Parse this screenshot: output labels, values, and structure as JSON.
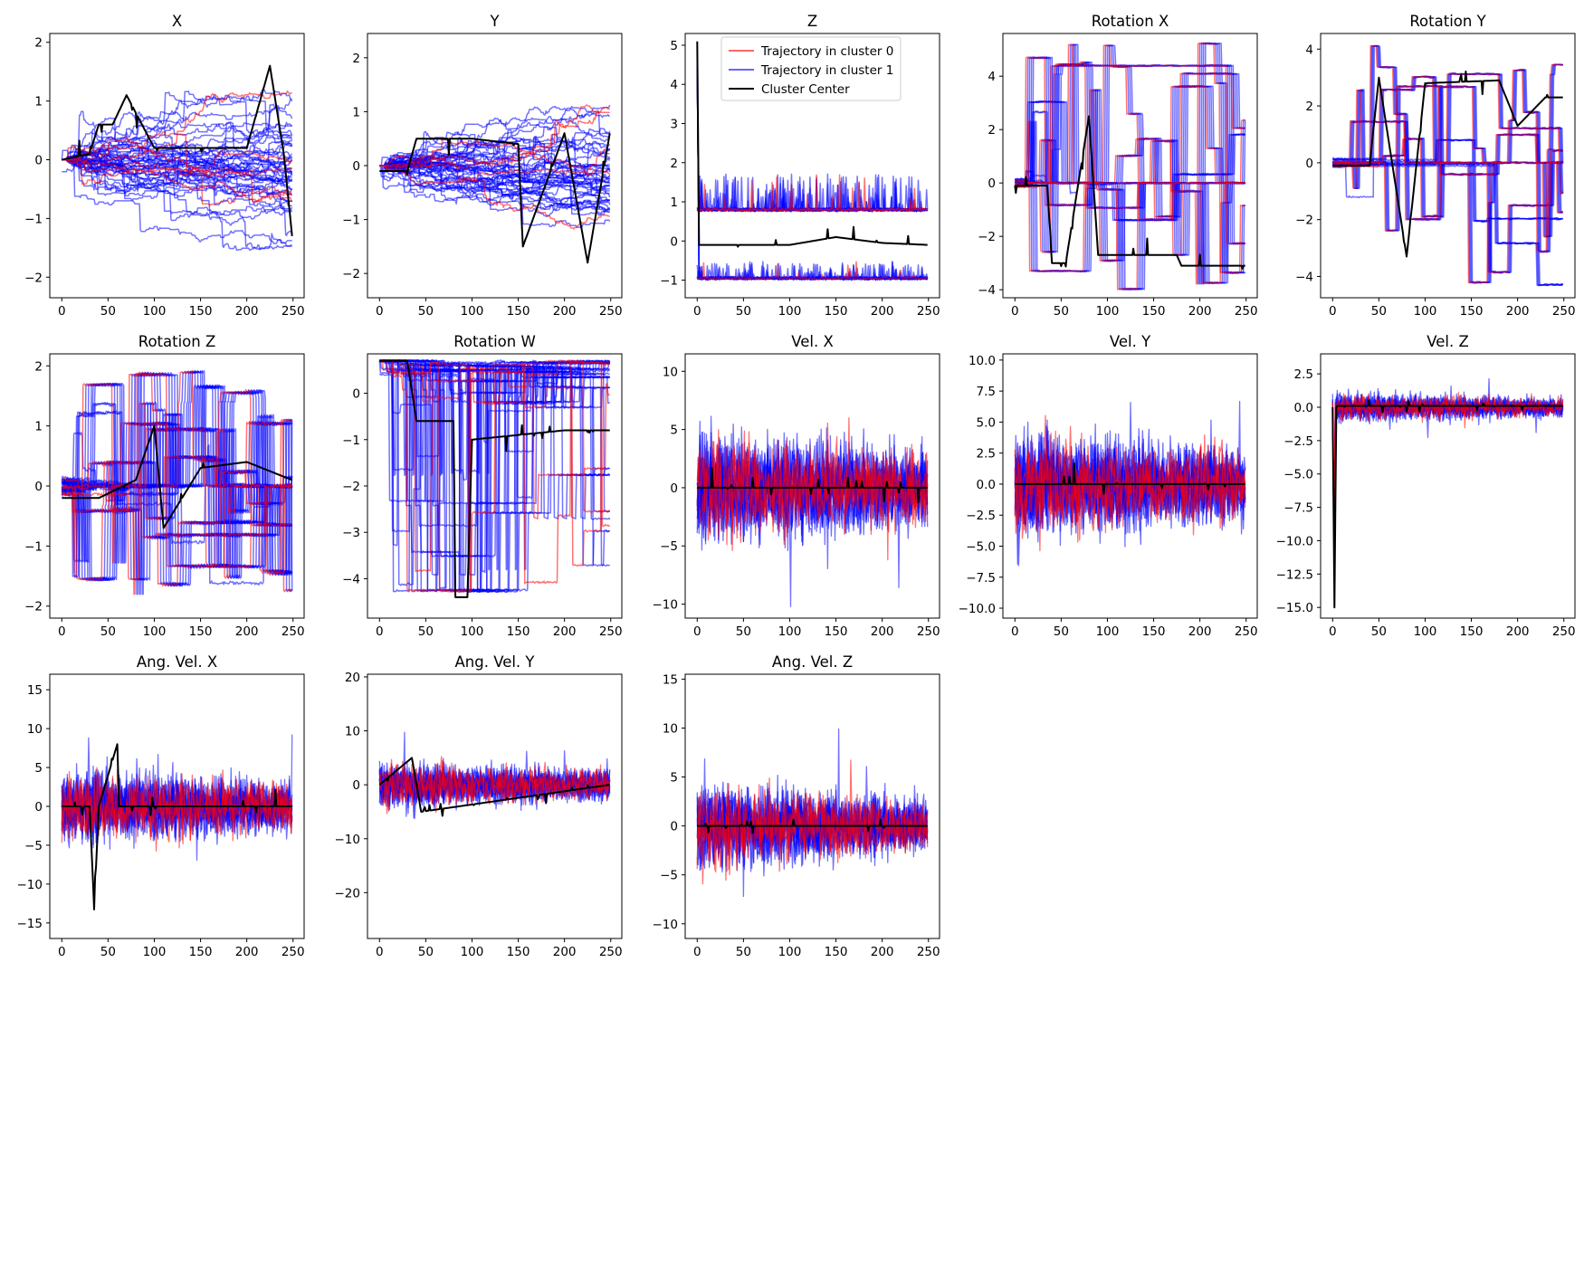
{
  "figure": {
    "background": "#ffffff",
    "colors": {
      "cluster0": "#ff0000",
      "cluster1": "#0000ff",
      "center": "#000000"
    },
    "legend": {
      "placement": "top-right",
      "entries": [
        {
          "label": "Trajectory in cluster 0",
          "color": "#ff0000"
        },
        {
          "label": "Trajectory in cluster 1",
          "color": "#0000ff"
        },
        {
          "label": "Cluster Center",
          "color": "#000000"
        }
      ]
    }
  },
  "chart_data": [
    {
      "type": "line",
      "title": "X",
      "xlim": [
        -13,
        262
      ],
      "ylim": [
        -2.35,
        2.15
      ],
      "xticks": [
        0,
        50,
        100,
        150,
        200,
        250
      ],
      "xticklabels": [
        "0",
        "50",
        "100",
        "150",
        "200",
        "250"
      ],
      "yticks": [
        -2,
        -1,
        0,
        1,
        2
      ],
      "yticklabels": [
        "−2",
        "−1",
        "0",
        "1",
        "2"
      ],
      "series_pattern": "walk",
      "series_count": {
        "cluster0": 6,
        "cluster1": 45
      },
      "center": [
        {
          "x": 0,
          "y": 0
        },
        {
          "x": 30,
          "y": 0.1
        },
        {
          "x": 40,
          "y": 0.6
        },
        {
          "x": 55,
          "y": 0.6
        },
        {
          "x": 70,
          "y": 1.1
        },
        {
          "x": 100,
          "y": 0.2
        },
        {
          "x": 150,
          "y": 0.2
        },
        {
          "x": 200,
          "y": 0.2
        },
        {
          "x": 225,
          "y": 1.6
        },
        {
          "x": 240,
          "y": 0.1
        },
        {
          "x": 249,
          "y": -1.3
        }
      ]
    },
    {
      "type": "line",
      "title": "Y",
      "xlim": [
        -13,
        262
      ],
      "ylim": [
        -2.45,
        2.45
      ],
      "xticks": [
        0,
        50,
        100,
        150,
        200,
        250
      ],
      "xticklabels": [
        "0",
        "50",
        "100",
        "150",
        "200",
        "250"
      ],
      "yticks": [
        -2,
        -1,
        0,
        1,
        2
      ],
      "yticklabels": [
        "−2",
        "−1",
        "0",
        "1",
        "2"
      ],
      "series_pattern": "walk",
      "series_count": {
        "cluster0": 5,
        "cluster1": 45
      },
      "center": [
        {
          "x": 0,
          "y": -0.1
        },
        {
          "x": 30,
          "y": -0.1
        },
        {
          "x": 40,
          "y": 0.5
        },
        {
          "x": 100,
          "y": 0.5
        },
        {
          "x": 150,
          "y": 0.4
        },
        {
          "x": 155,
          "y": -1.5
        },
        {
          "x": 200,
          "y": 0.6
        },
        {
          "x": 225,
          "y": -1.8
        },
        {
          "x": 249,
          "y": 0.6
        }
      ]
    },
    {
      "type": "line",
      "title": "Z",
      "xlim": [
        -13,
        262
      ],
      "ylim": [
        -1.45,
        5.3
      ],
      "xticks": [
        0,
        50,
        100,
        150,
        200,
        250
      ],
      "xticklabels": [
        "0",
        "50",
        "100",
        "150",
        "200",
        "250"
      ],
      "yticks": [
        -1,
        0,
        1,
        2,
        3,
        4,
        5
      ],
      "yticklabels": [
        "−1",
        "0",
        "1",
        "2",
        "3",
        "4",
        "5"
      ],
      "series_pattern": "bands",
      "series_count": {
        "cluster0": 3,
        "cluster1": 30
      },
      "bands": [
        0.8,
        -0.95
      ],
      "center": [
        {
          "x": 0,
          "y": 5.1
        },
        {
          "x": 2,
          "y": -0.1
        },
        {
          "x": 100,
          "y": -0.1
        },
        {
          "x": 150,
          "y": 0.1
        },
        {
          "x": 200,
          "y": -0.05
        },
        {
          "x": 249,
          "y": -0.1
        }
      ]
    },
    {
      "type": "line",
      "title": "Rotation X",
      "xlim": [
        -13,
        262
      ],
      "ylim": [
        -4.3,
        5.6
      ],
      "xticks": [
        0,
        50,
        100,
        150,
        200,
        250
      ],
      "xticklabels": [
        "0",
        "50",
        "100",
        "150",
        "200",
        "250"
      ],
      "yticks": [
        -4,
        -2,
        0,
        2,
        4
      ],
      "yticklabels": [
        "−4",
        "−2",
        "0",
        "2",
        "4"
      ],
      "series_pattern": "steps",
      "series_count": {
        "cluster0": 6,
        "cluster1": 28
      },
      "center": [
        {
          "x": 0,
          "y": -0.1
        },
        {
          "x": 35,
          "y": -0.1
        },
        {
          "x": 40,
          "y": -3.0
        },
        {
          "x": 55,
          "y": -3.0
        },
        {
          "x": 80,
          "y": 2.5
        },
        {
          "x": 90,
          "y": -2.7
        },
        {
          "x": 110,
          "y": -2.7
        },
        {
          "x": 175,
          "y": -2.7
        },
        {
          "x": 180,
          "y": -3.1
        },
        {
          "x": 249,
          "y": -3.1
        }
      ]
    },
    {
      "type": "line",
      "title": "Rotation Y",
      "xlim": [
        -13,
        262
      ],
      "ylim": [
        -4.75,
        4.55
      ],
      "xticks": [
        0,
        50,
        100,
        150,
        200,
        250
      ],
      "xticklabels": [
        "0",
        "50",
        "100",
        "150",
        "200",
        "250"
      ],
      "yticks": [
        -4,
        -2,
        0,
        2,
        4
      ],
      "yticklabels": [
        "−4",
        "−2",
        "0",
        "2",
        "4"
      ],
      "series_pattern": "steps",
      "series_count": {
        "cluster0": 5,
        "cluster1": 28
      },
      "center": [
        {
          "x": 0,
          "y": -0.1
        },
        {
          "x": 40,
          "y": -0.1
        },
        {
          "x": 50,
          "y": 3.0
        },
        {
          "x": 80,
          "y": -3.3
        },
        {
          "x": 100,
          "y": 2.8
        },
        {
          "x": 180,
          "y": 2.9
        },
        {
          "x": 200,
          "y": 1.3
        },
        {
          "x": 230,
          "y": 2.3
        },
        {
          "x": 249,
          "y": 2.3
        }
      ]
    },
    {
      "type": "line",
      "title": "Rotation Z",
      "xlim": [
        -13,
        262
      ],
      "ylim": [
        -2.2,
        2.2
      ],
      "xticks": [
        0,
        50,
        100,
        150,
        200,
        250
      ],
      "xticklabels": [
        "0",
        "50",
        "100",
        "150",
        "200",
        "250"
      ],
      "yticks": [
        -2,
        -1,
        0,
        1,
        2
      ],
      "yticklabels": [
        "−2",
        "−1",
        "0",
        "1",
        "2"
      ],
      "series_pattern": "steps",
      "series_count": {
        "cluster0": 6,
        "cluster1": 40
      },
      "center": [
        {
          "x": 0,
          "y": -0.2
        },
        {
          "x": 40,
          "y": -0.2
        },
        {
          "x": 80,
          "y": 0.1
        },
        {
          "x": 100,
          "y": 1.0
        },
        {
          "x": 110,
          "y": -0.7
        },
        {
          "x": 150,
          "y": 0.3
        },
        {
          "x": 200,
          "y": 0.4
        },
        {
          "x": 249,
          "y": 0.1
        }
      ]
    },
    {
      "type": "line",
      "title": "Rotation W",
      "xlim": [
        -13,
        262
      ],
      "ylim": [
        -4.85,
        0.85
      ],
      "xticks": [
        0,
        50,
        100,
        150,
        200,
        250
      ],
      "xticklabels": [
        "0",
        "50",
        "100",
        "150",
        "200",
        "250"
      ],
      "yticks": [
        -4,
        -3,
        -2,
        -1,
        0
      ],
      "yticklabels": [
        "−4",
        "−3",
        "−2",
        "−1",
        "0"
      ],
      "series_pattern": "drops",
      "series_count": {
        "cluster0": 5,
        "cluster1": 40
      },
      "center": [
        {
          "x": 0,
          "y": 0.7
        },
        {
          "x": 30,
          "y": 0.7
        },
        {
          "x": 40,
          "y": -0.6
        },
        {
          "x": 80,
          "y": -0.6
        },
        {
          "x": 82,
          "y": -4.4
        },
        {
          "x": 95,
          "y": -4.4
        },
        {
          "x": 100,
          "y": -1.0
        },
        {
          "x": 150,
          "y": -0.9
        },
        {
          "x": 200,
          "y": -0.8
        },
        {
          "x": 249,
          "y": -0.8
        }
      ]
    },
    {
      "type": "line",
      "title": "Vel. X",
      "xlim": [
        -13,
        262
      ],
      "ylim": [
        -11.2,
        11.5
      ],
      "xticks": [
        0,
        50,
        100,
        150,
        200,
        250
      ],
      "xticklabels": [
        "0",
        "50",
        "100",
        "150",
        "200",
        "250"
      ],
      "yticks": [
        -10,
        -5,
        0,
        5,
        10
      ],
      "yticklabels": [
        "−10",
        "−5",
        "0",
        "5",
        "10"
      ],
      "series_pattern": "noise",
      "noise_amp": 4.5,
      "series_count": {
        "cluster0": 3,
        "cluster1": 10
      },
      "center": [
        {
          "x": 0,
          "y": 0
        },
        {
          "x": 249,
          "y": 0
        }
      ]
    },
    {
      "type": "line",
      "title": "Vel. Y",
      "xlim": [
        -13,
        262
      ],
      "ylim": [
        -10.8,
        10.5
      ],
      "xticks": [
        0,
        50,
        100,
        150,
        200,
        250
      ],
      "xticklabels": [
        "0",
        "50",
        "100",
        "150",
        "200",
        "250"
      ],
      "yticks": [
        -10,
        -7.5,
        -5,
        -2.5,
        0,
        2.5,
        5,
        7.5,
        10
      ],
      "yticklabels": [
        "−10.0",
        "−7.5",
        "−5.0",
        "−2.5",
        "0.0",
        "2.5",
        "5.0",
        "7.5",
        "10.0"
      ],
      "series_pattern": "noise",
      "noise_amp": 4.0,
      "series_count": {
        "cluster0": 3,
        "cluster1": 10
      },
      "center": [
        {
          "x": 0,
          "y": 0
        },
        {
          "x": 249,
          "y": 0
        }
      ]
    },
    {
      "type": "line",
      "title": "Vel. Z",
      "xlim": [
        -13,
        262
      ],
      "ylim": [
        -15.8,
        4.0
      ],
      "xticks": [
        0,
        50,
        100,
        150,
        200,
        250
      ],
      "xticklabels": [
        "0",
        "50",
        "100",
        "150",
        "200",
        "250"
      ],
      "yticks": [
        -15,
        -12.5,
        -10,
        -7.5,
        -5,
        -2.5,
        0,
        2.5
      ],
      "yticklabels": [
        "−15.0",
        "−12.5",
        "−10.0",
        "−7.5",
        "−5.0",
        "−2.5",
        "0.0",
        "2.5"
      ],
      "series_pattern": "noise",
      "noise_amp": 1.0,
      "spike_start": -15,
      "series_count": {
        "cluster0": 3,
        "cluster1": 10
      },
      "center": [
        {
          "x": 0,
          "y": 0
        },
        {
          "x": 2,
          "y": -15
        },
        {
          "x": 4,
          "y": 0.1
        },
        {
          "x": 249,
          "y": 0.1
        }
      ]
    },
    {
      "type": "line",
      "title": "Ang. Vel. X",
      "xlim": [
        -13,
        262
      ],
      "ylim": [
        -17.0,
        17.0
      ],
      "xticks": [
        0,
        50,
        100,
        150,
        200,
        250
      ],
      "xticklabels": [
        "0",
        "50",
        "100",
        "150",
        "200",
        "250"
      ],
      "yticks": [
        -15,
        -10,
        -5,
        0,
        5,
        10,
        15
      ],
      "yticklabels": [
        "−15",
        "−10",
        "−5",
        "0",
        "5",
        "10",
        "15"
      ],
      "series_pattern": "noise",
      "noise_amp": 4.5,
      "series_count": {
        "cluster0": 3,
        "cluster1": 10
      },
      "center": [
        {
          "x": 0,
          "y": 0
        },
        {
          "x": 30,
          "y": 0
        },
        {
          "x": 35,
          "y": -13
        },
        {
          "x": 40,
          "y": 0
        },
        {
          "x": 60,
          "y": 8
        },
        {
          "x": 62,
          "y": 0
        },
        {
          "x": 249,
          "y": 0
        }
      ]
    },
    {
      "type": "line",
      "title": "Ang. Vel. Y",
      "xlim": [
        -13,
        262
      ],
      "ylim": [
        -28.5,
        20.5
      ],
      "xticks": [
        0,
        50,
        100,
        150,
        200,
        250
      ],
      "xticklabels": [
        "0",
        "50",
        "100",
        "150",
        "200",
        "250"
      ],
      "yticks": [
        -20,
        -10,
        0,
        10,
        20
      ],
      "yticklabels": [
        "−20",
        "−10",
        "0",
        "10",
        "20"
      ],
      "series_pattern": "noise",
      "noise_amp": 4.0,
      "series_count": {
        "cluster0": 3,
        "cluster1": 10
      },
      "center": [
        {
          "x": 0,
          "y": 0
        },
        {
          "x": 35,
          "y": 5
        },
        {
          "x": 45,
          "y": -5
        },
        {
          "x": 249,
          "y": 0
        }
      ]
    },
    {
      "type": "line",
      "title": "Ang. Vel. Z",
      "xlim": [
        -13,
        262
      ],
      "ylim": [
        -11.5,
        15.5
      ],
      "xticks": [
        0,
        50,
        100,
        150,
        200,
        250
      ],
      "xticklabels": [
        "0",
        "50",
        "100",
        "150",
        "200",
        "250"
      ],
      "yticks": [
        -10,
        -5,
        0,
        5,
        10,
        15
      ],
      "yticklabels": [
        "−10",
        "−5",
        "0",
        "5",
        "10",
        "15"
      ],
      "series_pattern": "noise",
      "noise_amp": 4.0,
      "series_count": {
        "cluster0": 3,
        "cluster1": 10
      },
      "center": [
        {
          "x": 0,
          "y": 0
        },
        {
          "x": 249,
          "y": 0
        }
      ]
    }
  ]
}
